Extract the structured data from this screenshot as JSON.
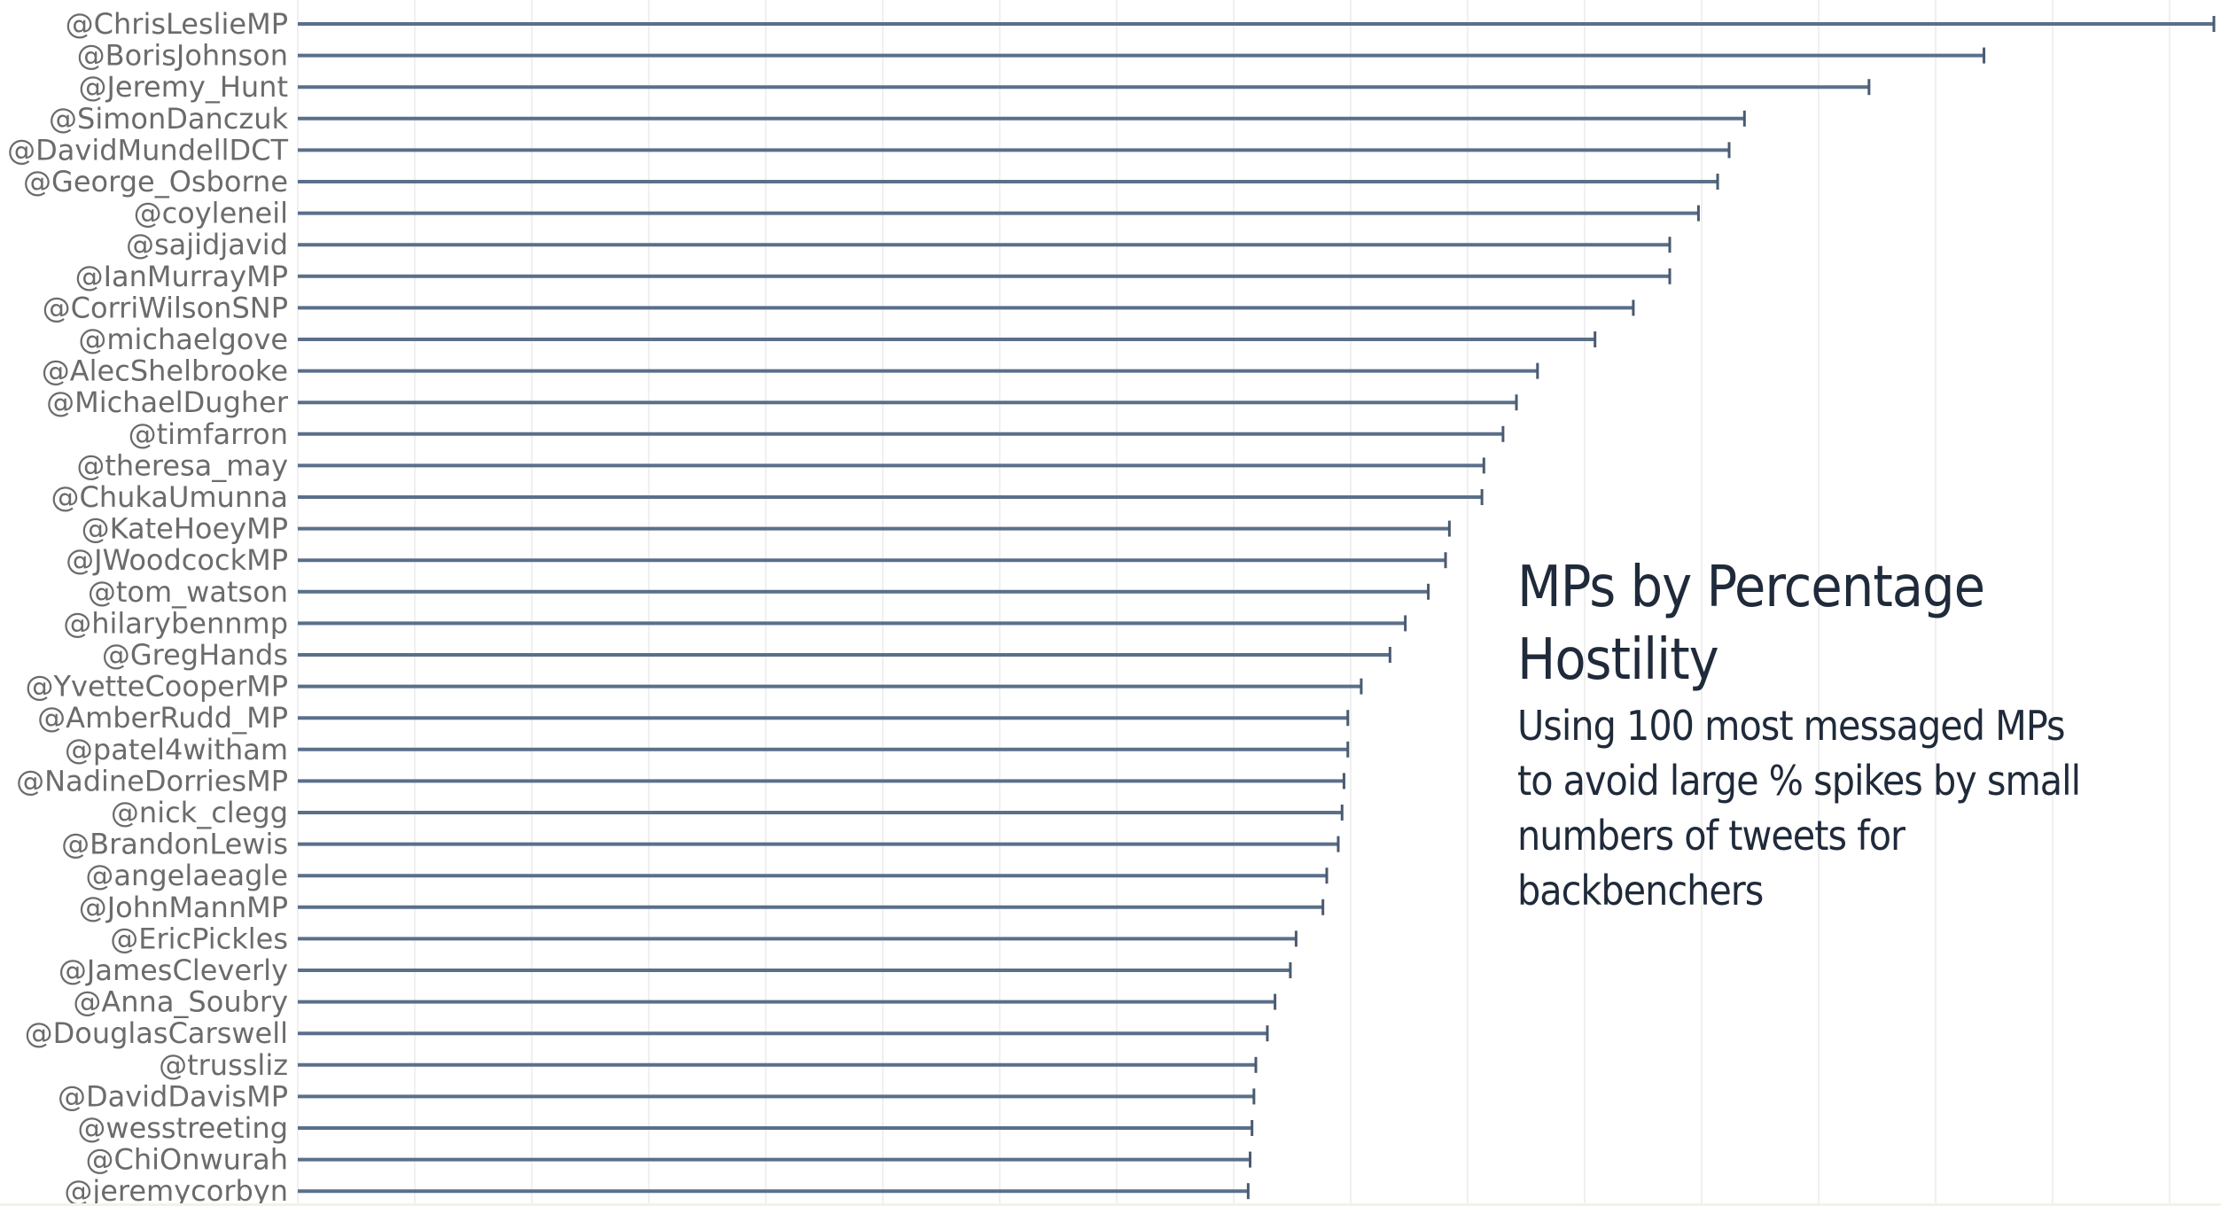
{
  "chart_data": {
    "type": "bar",
    "orientation": "horizontal",
    "bar_style": "lollipop-line",
    "xlim": [
      0,
      1
    ],
    "grid": true,
    "categories": [
      "@ChrisLeslieMP",
      "@BorisJohnson",
      "@Jeremy_Hunt",
      "@SimonDanczuk",
      "@DavidMundellDCT",
      "@George_Osborne",
      "@coyleneil",
      "@sajidjavid",
      "@IanMurrayMP",
      "@CorriWilsonSNP",
      "@michaelgove",
      "@AlecShelbrooke",
      "@MichaelDugher",
      "@timfarron",
      "@theresa_may",
      "@ChukaUmunna",
      "@KateHoeyMP",
      "@JWoodcockMP",
      "@tom_watson",
      "@hilarybennmp",
      "@GregHands",
      "@YvetteCooperMP",
      "@AmberRudd_MP",
      "@patel4witham",
      "@NadineDorriesMP",
      "@nick_clegg",
      "@BrandonLewis",
      "@angelaeagle",
      "@JohnMannMP",
      "@EricPickles",
      "@JamesCleverly",
      "@Anna_Soubry",
      "@DouglasCarswell",
      "@trussliz",
      "@DavidDavisMP",
      "@wesstreeting",
      "@ChiOnwurah",
      "@jeremycorbyn"
    ],
    "values": [
      1.0,
      0.88,
      0.82,
      0.755,
      0.747,
      0.741,
      0.731,
      0.716,
      0.716,
      0.697,
      0.677,
      0.647,
      0.636,
      0.629,
      0.619,
      0.618,
      0.601,
      0.599,
      0.59,
      0.578,
      0.57,
      0.555,
      0.548,
      0.548,
      0.546,
      0.545,
      0.543,
      0.537,
      0.535,
      0.521,
      0.518,
      0.51,
      0.506,
      0.5,
      0.499,
      0.498,
      0.497,
      0.496
    ]
  },
  "annotation": {
    "title": "MPs by Percentage Hostility",
    "subtitle": "Using 100 most messaged MPs to avoid large % spikes by small numbers of tweets for backbenchers"
  },
  "colors": {
    "bar": "#5a6f8a",
    "label": "#6b6b6b",
    "annotation": "#1f2a3a",
    "grid": "#ececec"
  }
}
